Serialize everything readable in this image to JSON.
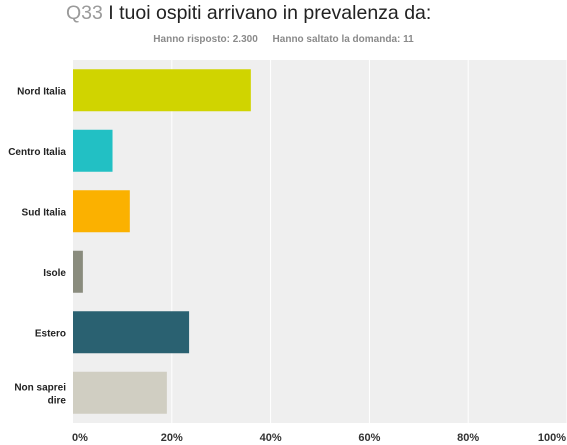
{
  "header": {
    "question_number": "Q33",
    "question_text": "I tuoi ospiti arrivano in prevalenza da:",
    "answered": "Hanno risposto: 2.300",
    "skipped": "Hanno saltato la domanda: 11"
  },
  "chart_data": {
    "type": "bar",
    "orientation": "horizontal",
    "categories": [
      "Nord Italia",
      "Centro Italia",
      "Sud Italia",
      "Isole",
      "Estero",
      "Non saprei dire"
    ],
    "values": [
      36,
      8,
      11.5,
      2,
      23.5,
      19
    ],
    "colors": [
      "#d0d400",
      "#22c0c4",
      "#fbb100",
      "#8a8c7e",
      "#2a6171",
      "#d0cec2"
    ],
    "xlim": [
      0,
      100
    ],
    "xticks": [
      "0%",
      "20%",
      "40%",
      "60%",
      "80%",
      "100%"
    ],
    "grid": true
  }
}
